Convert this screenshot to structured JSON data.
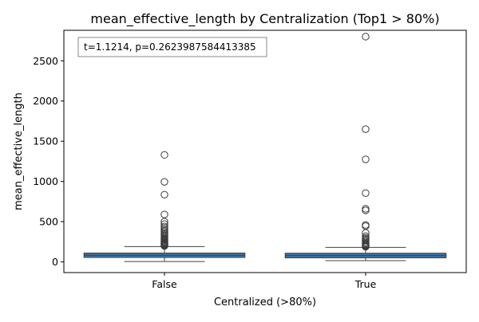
{
  "chart_data": {
    "type": "box",
    "title": "mean_effective_length by Centralization (Top1 > 80%)",
    "xlabel": "Centralized (>80%)",
    "ylabel": "mean_effective_length",
    "annotation": "t=1.1214, p=0.2623987584413385",
    "categories": [
      "False",
      "True"
    ],
    "ylim": [
      -133,
      2879
    ],
    "yticks": [
      0,
      500,
      1000,
      1500,
      2000,
      2500
    ],
    "grid": false,
    "box_color": "#3a75a8",
    "boxes": [
      {
        "category": "False",
        "whisker_low": 5,
        "q1": 55,
        "median": 82,
        "q3": 110,
        "whisker_high": 190,
        "outliers": [
          1330,
          995,
          835,
          590,
          500,
          470,
          440,
          420,
          400,
          380,
          360,
          345,
          330,
          315,
          300,
          290,
          280,
          270,
          260,
          250,
          240,
          232,
          225,
          218,
          210,
          204,
          198
        ]
      },
      {
        "category": "True",
        "whisker_low": 15,
        "q1": 50,
        "median": 78,
        "q3": 108,
        "whisker_high": 180,
        "outliers": [
          2800,
          1650,
          1275,
          855,
          660,
          640,
          460,
          445,
          360,
          320,
          300,
          285,
          270,
          255,
          240,
          228,
          215,
          205,
          195,
          188
        ]
      }
    ]
  }
}
